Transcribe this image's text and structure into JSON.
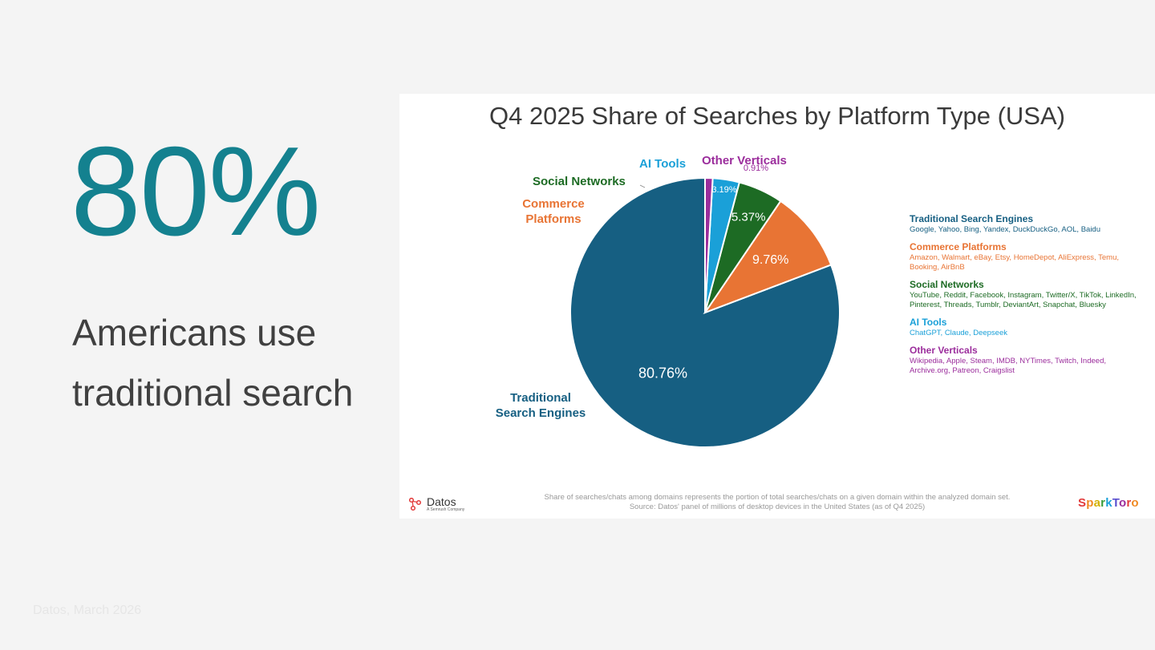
{
  "left_panel": {
    "stat": "80%",
    "line1": "Americans use",
    "line2": "traditional search",
    "source": "Datos, March 2026"
  },
  "card": {
    "title": "Q4 2025 Share of Searches by Platform Type (USA)",
    "footnote_line1": "Share of searches/chats among domains represents the portion of total searches/chats on a given domain within the analyzed domain set.",
    "footnote_line2": "Source: Datos' panel of millions of desktop devices in the United States (as of Q4 2025)",
    "datos_logo": "Datos",
    "datos_tag": "A Semrush Company",
    "sparktoro_logo": "SparkToro"
  },
  "chart_data": {
    "type": "pie",
    "title": "Q4 2025 Share of Searches by Platform Type (USA)",
    "slices": [
      {
        "name": "Traditional Search Engines",
        "label": "Traditional\nSearch Engines",
        "value": 80.76,
        "display": "80.76%",
        "color": "#165f82",
        "legend_desc": "Google, Yahoo, Bing, Yandex, DuckDuckGo, AOL, Baidu"
      },
      {
        "name": "Commerce Platforms",
        "label": "Commerce\nPlatforms",
        "value": 9.76,
        "display": "9.76%",
        "color": "#e87434",
        "legend_desc": "Amazon, Walmart, eBay, Etsy, HomeDepot, AliExpress, Temu, Booking, AirBnB"
      },
      {
        "name": "Social Networks",
        "label": "Social Networks",
        "value": 5.37,
        "display": "5.37%",
        "color": "#1d6b24",
        "legend_desc": "YouTube, Reddit, Facebook, Instagram, Twitter/X, TikTok, LinkedIn, Pinterest, Threads, Tumblr, DeviantArt, Snapchat, Bluesky"
      },
      {
        "name": "AI Tools",
        "label": "AI Tools",
        "value": 3.19,
        "display": "3.19%",
        "color": "#1aa0d8",
        "legend_desc": "ChatGPT, Claude, Deepseek"
      },
      {
        "name": "Other Verticals",
        "label": "Other Verticals",
        "value": 0.91,
        "display": "0.91%",
        "color": "#9b2d9c",
        "legend_desc": "Wikipedia, Apple, Steam, IMDB, NYTimes, Twitch, Indeed, Archive.org, Patreon, Craigslist"
      }
    ],
    "legend_placement": "right"
  }
}
